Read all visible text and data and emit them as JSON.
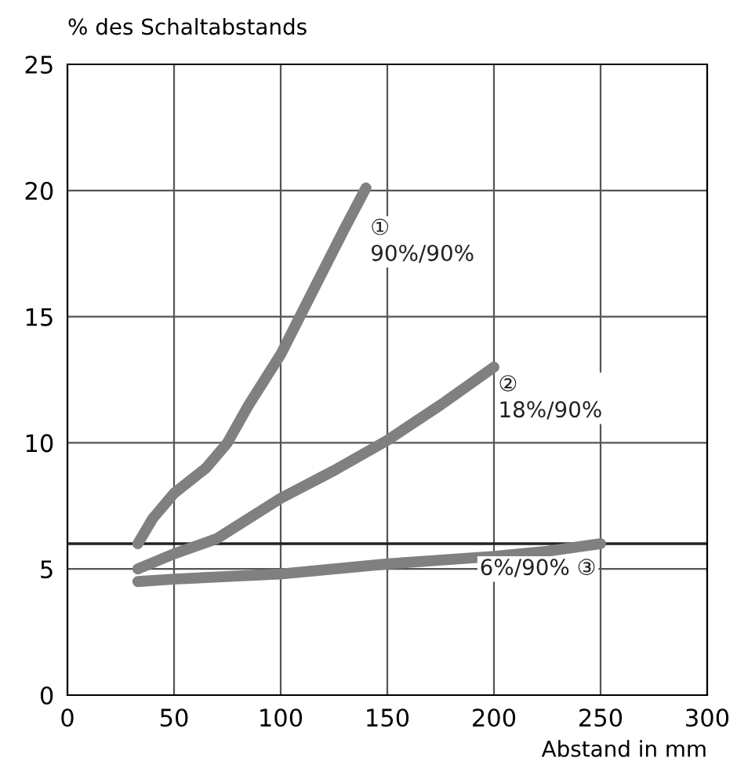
{
  "chart_data": {
    "type": "line",
    "xlabel": "Abstand in mm",
    "ylabel": "% des Schaltabstands",
    "xlim": [
      0,
      300
    ],
    "xticks": [
      0,
      50,
      100,
      150,
      200,
      250,
      300
    ],
    "ylim": [
      0,
      25
    ],
    "yticks": [
      0,
      5,
      10,
      15,
      20,
      25
    ],
    "grid": true,
    "ref_lines": [
      {
        "axis": "y",
        "value": 6,
        "color": "#222222"
      }
    ],
    "series": [
      {
        "name": "①\n90%/90%",
        "color": "#808080",
        "x": [
          33,
          40,
          50,
          65,
          75,
          85,
          100,
          115,
          130,
          140
        ],
        "values": [
          6,
          7,
          8,
          9,
          10,
          11.5,
          13.5,
          16,
          18.5,
          20.1
        ]
      },
      {
        "name": "②\n18%/90%",
        "color": "#808080",
        "x": [
          33,
          50,
          70,
          85,
          100,
          125,
          150,
          175,
          200
        ],
        "values": [
          5,
          5.6,
          6.2,
          7,
          7.8,
          8.9,
          10.1,
          11.5,
          13
        ]
      },
      {
        "name": "6%/90% ③",
        "color": "#808080",
        "x": [
          33,
          50,
          100,
          150,
          200,
          225,
          250
        ],
        "values": [
          4.5,
          4.6,
          4.8,
          5.2,
          5.5,
          5.7,
          6.0
        ]
      }
    ]
  }
}
